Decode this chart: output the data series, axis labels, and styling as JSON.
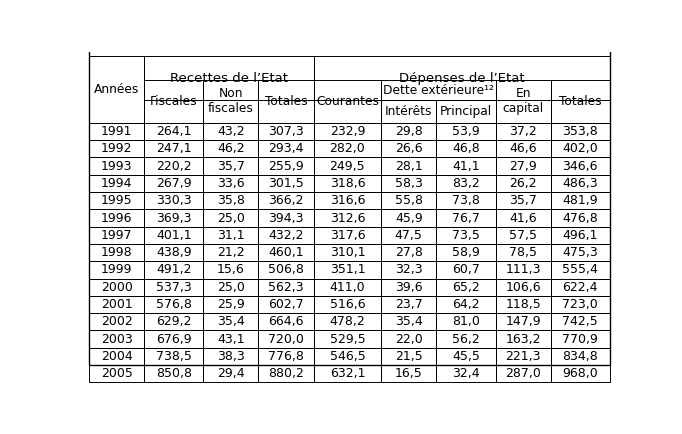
{
  "years": [
    "1991",
    "1992",
    "1993",
    "1994",
    "1995",
    "1996",
    "1997",
    "1998",
    "1999",
    "2000",
    "2001",
    "2002",
    "2003",
    "2004",
    "2005"
  ],
  "fiscales": [
    "264,1",
    "247,1",
    "220,2",
    "267,9",
    "330,3",
    "369,3",
    "401,1",
    "438,9",
    "491,2",
    "537,3",
    "576,8",
    "629,2",
    "676,9",
    "738,5",
    "850,8"
  ],
  "non_fiscales": [
    "43,2",
    "46,2",
    "35,7",
    "33,6",
    "35,8",
    "25,0",
    "31,1",
    "21,2",
    "15,6",
    "25,0",
    "25,9",
    "35,4",
    "43,1",
    "38,3",
    "29,4"
  ],
  "totales_rec": [
    "307,3",
    "293,4",
    "255,9",
    "301,5",
    "366,2",
    "394,3",
    "432,2",
    "460,1",
    "506,8",
    "562,3",
    "602,7",
    "664,6",
    "720,0",
    "776,8",
    "880,2"
  ],
  "courantes": [
    "232,9",
    "282,0",
    "249,5",
    "318,6",
    "316,6",
    "312,6",
    "317,6",
    "310,1",
    "351,1",
    "411,0",
    "516,6",
    "478,2",
    "529,5",
    "546,5",
    "632,1"
  ],
  "interets": [
    "29,8",
    "26,6",
    "28,1",
    "58,3",
    "55,8",
    "45,9",
    "47,5",
    "27,8",
    "32,3",
    "39,6",
    "23,7",
    "35,4",
    "22,0",
    "21,5",
    "16,5"
  ],
  "principal": [
    "53,9",
    "46,8",
    "41,1",
    "83,2",
    "73,8",
    "76,7",
    "73,5",
    "58,9",
    "60,7",
    "65,2",
    "64,2",
    "81,0",
    "56,2",
    "45,5",
    "32,4"
  ],
  "en_capital": [
    "37,2",
    "46,6",
    "27,9",
    "26,2",
    "35,7",
    "41,6",
    "57,5",
    "78,5",
    "111,3",
    "106,6",
    "118,5",
    "147,9",
    "163,2",
    "221,3",
    "287,0"
  ],
  "totales_dep": [
    "353,8",
    "402,0",
    "346,6",
    "486,3",
    "481,9",
    "476,8",
    "496,1",
    "475,3",
    "555,4",
    "622,4",
    "723,0",
    "742,5",
    "770,9",
    "834,8",
    "968,0"
  ],
  "header1_recettes": "Recettes de l’Etat",
  "header1_depenses": "Dépenses de l’Etat",
  "header2_dette": "Dette extérieure¹²",
  "col_annees": "Années",
  "col_fiscales": "Fiscales",
  "col_non_fiscales": "Non\nfiscales",
  "col_totales": "Totales",
  "col_courantes": "Courantes",
  "col_interets": "Intérêts",
  "col_principal": "Principal",
  "col_en_capital": "En\ncapital",
  "col_totales_dep": "Totales",
  "bg_color": "#ffffff",
  "border_color": "#000000",
  "text_color": "#000000",
  "header_fontsize": 9.5,
  "cell_fontsize": 9.0,
  "col_header_fontsize": 8.8
}
